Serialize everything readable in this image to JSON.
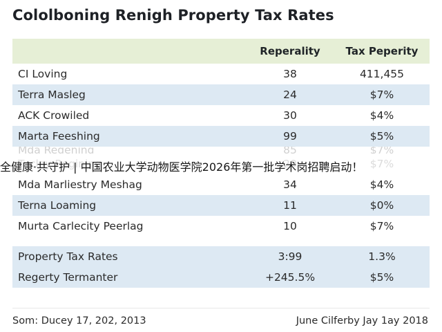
{
  "title": "Cololboning Renigh Property Tax Rates",
  "table": {
    "columns": [
      "",
      "Reperality",
      "Tax Peperity"
    ],
    "rows": [
      {
        "name": "CI Loving",
        "reperality": "38",
        "tax": "411,455",
        "style": "white"
      },
      {
        "name": "Terra Masleg",
        "reperality": "24",
        "tax": "$7%",
        "style": "alt"
      },
      {
        "name": "ACK Crowiled",
        "reperality": "30",
        "tax": "$4%",
        "style": "white"
      },
      {
        "name": "Marta Feeshing",
        "reperality": "99",
        "tax": "$5%",
        "style": "alt"
      },
      {
        "name": "Mda Regening",
        "reperality": "85",
        "tax": "$7%",
        "style": "ghost"
      },
      {
        "name": "Tuclay Regining",
        "reperality": "20",
        "tax": "$7%",
        "style": "faded"
      },
      {
        "name": "Mda Marliestry Meshag",
        "reperality": "34",
        "tax": "$4%",
        "style": "white"
      },
      {
        "name": "Terna Loaming",
        "reperality": "11",
        "tax": "$0%",
        "style": "alt"
      },
      {
        "name": "Murta Carlecity Peerlag",
        "reperality": "10",
        "tax": "$7%",
        "style": "white"
      }
    ],
    "summary": [
      {
        "name": "Property Tax Rates",
        "reperality": "3:99",
        "tax": "1.3%"
      },
      {
        "name": "Regerty Termanter",
        "reperality": "+245.5%",
        "tax": "$5%"
      }
    ]
  },
  "banner": "全健康·共守护 | 中国农业大学动物医学院2026年第一批学术岗招聘启动！",
  "footer": {
    "left": "Som: Ducey 17, 202, 2013",
    "right": "June Cilferby Jay 1ay 2018"
  }
}
